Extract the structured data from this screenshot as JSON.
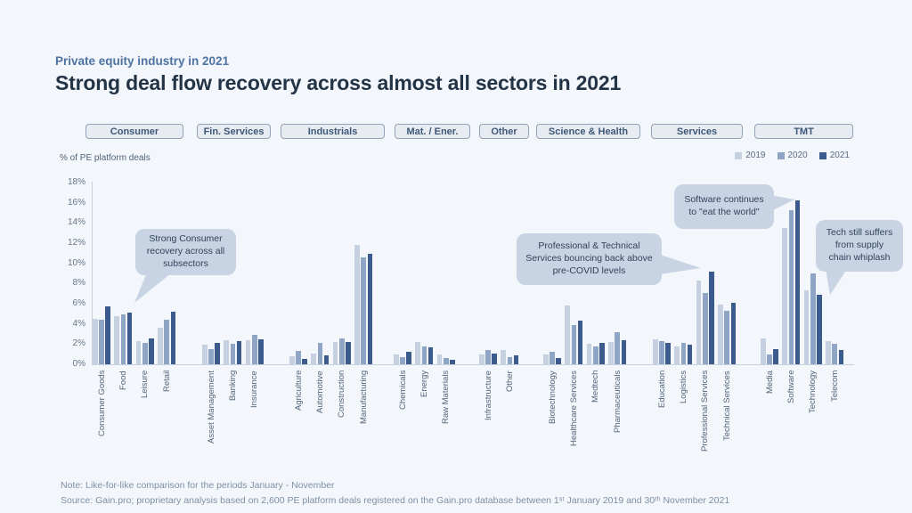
{
  "page": {
    "eyebrow": "Private equity industry in 2021",
    "title": "Strong deal flow recovery across almost all sectors in 2021"
  },
  "legend": [
    {
      "label": "2019",
      "color": "#c5d0e0"
    },
    {
      "label": "2020",
      "color": "#8fa5c6"
    },
    {
      "label": "2021",
      "color": "#3a5b8c"
    }
  ],
  "chart_data": {
    "type": "bar",
    "title": "Strong deal flow recovery across almost all sectors in 2021",
    "ylabel": "% of PE platform deals",
    "ylim": [
      0,
      18
    ],
    "y_tick_step": 2,
    "y_tick_suffix": "%",
    "grid": false,
    "legend_position": "top-right",
    "series_names": [
      "2019",
      "2020",
      "2021"
    ],
    "sections": [
      {
        "label": "Consumer",
        "groups": [
          {
            "label": "Consumer Goods",
            "values": [
              4.5,
              4.4,
              5.7
            ]
          },
          {
            "label": "Food",
            "values": [
              4.8,
              4.9,
              5.1
            ]
          },
          {
            "label": "Leisure",
            "values": [
              2.3,
              2.1,
              2.6
            ]
          },
          {
            "label": "Retail",
            "values": [
              3.6,
              4.4,
              5.2
            ]
          }
        ]
      },
      {
        "label": "Fin. Services",
        "groups": [
          {
            "label": "Asset Management",
            "values": [
              1.9,
              1.5,
              2.1
            ]
          },
          {
            "label": "Banking",
            "values": [
              2.4,
              2.0,
              2.3
            ]
          },
          {
            "label": "Insurance",
            "values": [
              2.4,
              2.9,
              2.5
            ]
          }
        ]
      },
      {
        "label": "Industrials",
        "groups": [
          {
            "label": "Agriculture",
            "values": [
              0.8,
              1.3,
              0.5
            ]
          },
          {
            "label": "Automotive",
            "values": [
              1.1,
              2.1,
              0.9
            ]
          },
          {
            "label": "Construction",
            "values": [
              2.2,
              2.6,
              2.2
            ]
          },
          {
            "label": "Manufacturing",
            "values": [
              11.8,
              10.6,
              10.9
            ]
          }
        ]
      },
      {
        "label": "Mat. / Ener.",
        "groups": [
          {
            "label": "Chemicals",
            "values": [
              1.0,
              0.7,
              1.2
            ]
          },
          {
            "label": "Energy",
            "values": [
              2.2,
              1.8,
              1.7
            ]
          },
          {
            "label": "Raw Materials",
            "values": [
              1.0,
              0.6,
              0.4
            ]
          }
        ]
      },
      {
        "label": "Other",
        "groups": [
          {
            "label": "Infrastructure",
            "values": [
              1.0,
              1.4,
              1.1
            ]
          },
          {
            "label": "Other",
            "values": [
              1.4,
              0.7,
              0.9
            ]
          }
        ]
      },
      {
        "label": "Science & Health",
        "groups": [
          {
            "label": "Biotechnology",
            "values": [
              1.0,
              1.2,
              0.6
            ]
          },
          {
            "label": "Healthcare Services",
            "values": [
              5.8,
              3.9,
              4.3
            ]
          },
          {
            "label": "Medtech",
            "values": [
              2.0,
              1.8,
              2.1
            ]
          },
          {
            "label": "Pharmaceuticals",
            "values": [
              2.2,
              3.2,
              2.4
            ]
          }
        ]
      },
      {
        "label": "Services",
        "groups": [
          {
            "label": "Education",
            "values": [
              2.5,
              2.3,
              2.1
            ]
          },
          {
            "label": "Logistics",
            "values": [
              1.8,
              2.1,
              1.9
            ]
          },
          {
            "label": "Professional Services",
            "values": [
              8.3,
              7.1,
              9.2
            ]
          },
          {
            "label": "Technical Services",
            "values": [
              5.9,
              5.3,
              6.1
            ]
          }
        ]
      },
      {
        "label": "TMT",
        "groups": [
          {
            "label": "Media",
            "values": [
              2.6,
              1.0,
              1.5
            ]
          },
          {
            "label": "Software",
            "values": [
              13.5,
              15.3,
              16.2
            ]
          },
          {
            "label": "Technology",
            "values": [
              7.3,
              9.0,
              6.9
            ]
          },
          {
            "label": "Telecom",
            "values": [
              2.3,
              2.0,
              1.4
            ]
          }
        ]
      }
    ]
  },
  "callouts": [
    {
      "text": "Strong Consumer recovery across all subsectors"
    },
    {
      "text": "Professional & Technical Services bouncing back above pre-COVID levels"
    },
    {
      "text": "Software continues to \"eat the world\""
    },
    {
      "text": "Tech still suffers from supply chain whiplash"
    }
  ],
  "footer": {
    "note": "Note: Like-for-like comparison for the periods January - November",
    "source": "Source: Gain.pro; proprietary analysis based on 2,600 PE platform deals registered on the Gain.pro database between 1ˢᵗ January 2019 and 30ᵗʰ November 2021"
  }
}
